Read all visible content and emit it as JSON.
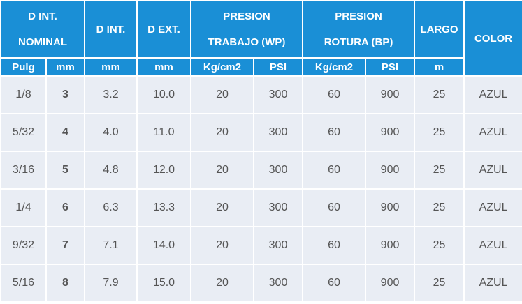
{
  "header": {
    "groups": [
      {
        "lines": [
          "D INT.",
          "NOMINAL"
        ]
      },
      {
        "lines": [
          "D INT."
        ]
      },
      {
        "lines": [
          "D EXT."
        ]
      },
      {
        "lines": [
          "PRESION",
          "TRABAJO (WP)"
        ]
      },
      {
        "lines": [
          "PRESION",
          "ROTURA (BP)"
        ]
      },
      {
        "lines": [
          "LARGO"
        ]
      },
      {
        "lines": [
          "COLOR"
        ]
      }
    ],
    "units": [
      "Pulg",
      "mm",
      "mm",
      "mm",
      "Kg/cm2",
      "PSI",
      "Kg/cm2",
      "PSI",
      "m"
    ]
  },
  "table": {
    "rows": [
      [
        "1/8",
        "3",
        "3.2",
        "10.0",
        "20",
        "300",
        "60",
        "900",
        "25",
        "AZUL"
      ],
      [
        "5/32",
        "4",
        "4.0",
        "11.0",
        "20",
        "300",
        "60",
        "900",
        "25",
        "AZUL"
      ],
      [
        "3/16",
        "5",
        "4.8",
        "12.0",
        "20",
        "300",
        "60",
        "900",
        "25",
        "AZUL"
      ],
      [
        "1/4",
        "6",
        "6.3",
        "13.3",
        "20",
        "300",
        "60",
        "900",
        "25",
        "AZUL"
      ],
      [
        "9/32",
        "7",
        "7.1",
        "14.0",
        "20",
        "300",
        "60",
        "900",
        "25",
        "AZUL"
      ],
      [
        "5/16",
        "8",
        "7.9",
        "15.0",
        "20",
        "300",
        "60",
        "900",
        "25",
        "AZUL"
      ]
    ]
  }
}
